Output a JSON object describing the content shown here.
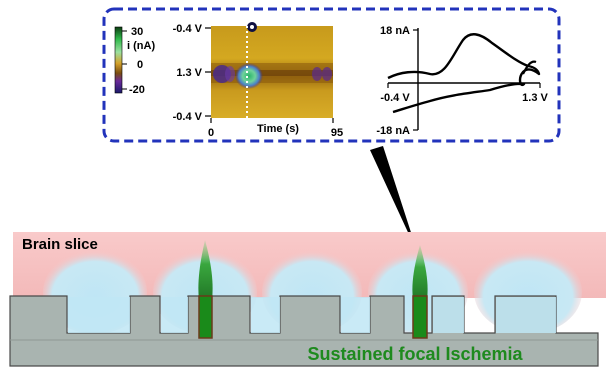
{
  "inset": {
    "colorbar": {
      "ticks": [
        "30",
        "0",
        "-20"
      ],
      "unit_label": "i (nA)"
    },
    "colorplot": {
      "y_top_label": "-0.4 V",
      "y_mid_label": "1.3 V",
      "y_bottom_label": "-0.4 V",
      "x_start_label": "0",
      "x_end_label": "95",
      "x_axis_label": "Time (s)"
    },
    "cv": {
      "y_top_label": "18 nA",
      "y_bottom_label": "-18 nA",
      "x_left_label": "-0.4 V",
      "x_right_label": "1.3 V"
    }
  },
  "slice": {
    "label": "Brain slice",
    "ischemia_label": "Sustained focal Ischemia"
  },
  "colors": {
    "inset_border": "#2233bb",
    "slice_pink": "#f7c4c4",
    "fluid_blue": "#bfe6f5",
    "substrate_gray": "#a9b4b0",
    "electrode_green": "#1a8a1a",
    "ischemia_text": "#1e8a1e"
  }
}
